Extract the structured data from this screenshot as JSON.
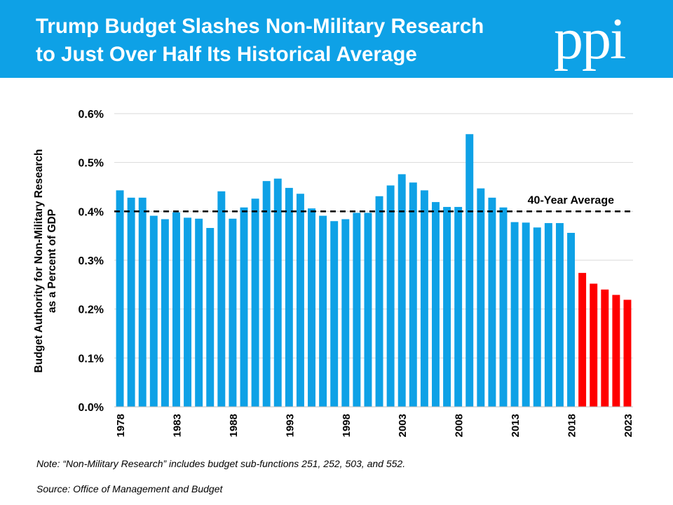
{
  "header": {
    "title_line1": "Trump Budget Slashes Non-Military Research",
    "title_line2": "to Just Over Half Its Historical Average",
    "logo_text": "ppi"
  },
  "colors": {
    "banner": "#0ea1e6",
    "historical_bar": "#0ea1e6",
    "projected_bar": "#ff0000"
  },
  "chart_data": {
    "type": "bar",
    "x": [
      1978,
      1979,
      1980,
      1981,
      1982,
      1983,
      1984,
      1985,
      1986,
      1987,
      1988,
      1989,
      1990,
      1991,
      1992,
      1993,
      1994,
      1995,
      1996,
      1997,
      1998,
      1999,
      2000,
      2001,
      2002,
      2003,
      2004,
      2005,
      2006,
      2007,
      2008,
      2009,
      2010,
      2011,
      2012,
      2013,
      2014,
      2015,
      2016,
      2017,
      2018,
      2019,
      2020,
      2021,
      2022,
      2023
    ],
    "values": [
      0.443,
      0.428,
      0.428,
      0.391,
      0.384,
      0.398,
      0.387,
      0.385,
      0.366,
      0.441,
      0.385,
      0.408,
      0.426,
      0.462,
      0.467,
      0.448,
      0.436,
      0.406,
      0.391,
      0.38,
      0.384,
      0.397,
      0.397,
      0.431,
      0.453,
      0.476,
      0.459,
      0.443,
      0.419,
      0.409,
      0.409,
      0.558,
      0.447,
      0.428,
      0.408,
      0.378,
      0.377,
      0.367,
      0.376,
      0.376,
      0.356,
      0.274,
      0.252,
      0.24,
      0.229,
      0.219
    ],
    "projected_from": 2019,
    "xticks": [
      1978,
      1983,
      1988,
      1993,
      1998,
      2003,
      2008,
      2013,
      2018,
      2023
    ],
    "yticks": [
      "0.0%",
      "0.1%",
      "0.2%",
      "0.3%",
      "0.4%",
      "0.5%",
      "0.6%"
    ],
    "ylim": [
      0,
      0.6
    ],
    "ylabel_line1": "Budget Authority for Non-Military Research",
    "ylabel_line2": "as a Percent of GDP",
    "xlabel": "",
    "reference_line": {
      "value": 0.4,
      "label": "40-Year Average"
    },
    "grid": true,
    "legend": "none"
  },
  "notes": {
    "note": "Note: “Non-Military Research” includes budget sub-functions 251, 252, 503, and 552.",
    "source": "Source: Office of Management and Budget"
  }
}
